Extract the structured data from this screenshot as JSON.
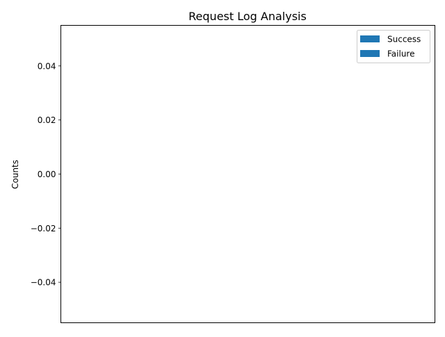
{
  "chart_data": {
    "type": "bar",
    "title": "Request Log Analysis",
    "xlabel": "",
    "ylabel": "Counts",
    "categories": [],
    "series": [
      {
        "name": "Success",
        "values": [],
        "color": "#1f77b4"
      },
      {
        "name": "Failure",
        "values": [],
        "color": "#1f77b4"
      }
    ],
    "ylim": [
      -0.055,
      0.055
    ],
    "yticks": [
      {
        "value": 0.04,
        "label": "0.04"
      },
      {
        "value": 0.02,
        "label": "0.02"
      },
      {
        "value": 0.0,
        "label": "0.00"
      },
      {
        "value": -0.02,
        "label": "−0.02"
      },
      {
        "value": -0.04,
        "label": "−0.04"
      }
    ],
    "grid": false,
    "legend_position": "top-right"
  }
}
